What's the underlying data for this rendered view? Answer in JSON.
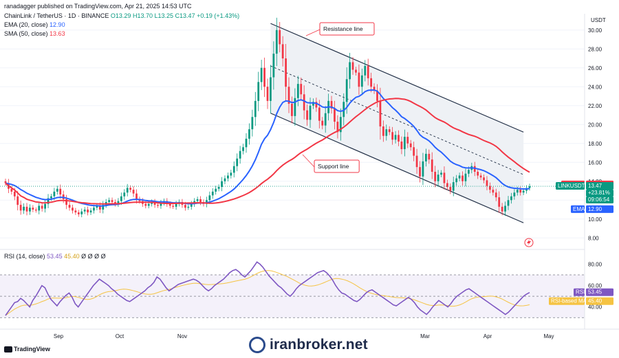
{
  "header": {
    "published": "ranadagger published on TradingView.com, Apr 21, 2025 14:53 UTC",
    "symbol": "ChainLink / TetherUS · 1D · BINANCE",
    "ohlc": {
      "o": "O13.29",
      "h": "H13.70",
      "l": "L13.25",
      "c": "C13.47",
      "chg": "+0.19 (+1.43%)"
    },
    "ema_label": "EMA (20, close)",
    "ema_value": "12.90",
    "sma_label": "SMA (50, close)",
    "sma_value": "13.63",
    "rsi_label": "RSI (14, close)",
    "rsi_value": "53.45",
    "rsi_ma_value": "45.40",
    "rsi_extra": "Ø Ø Ø Ø",
    "currency": "USDT"
  },
  "annotations": {
    "resistance": "Resistance line",
    "support": "Support line"
  },
  "price_axis": {
    "ticks": [
      "30.00",
      "28.00",
      "26.00",
      "24.00",
      "22.00",
      "20.00",
      "18.00",
      "16.00",
      "14.00",
      "12.00",
      "10.00",
      "8.00"
    ]
  },
  "rsi_axis": {
    "ticks": [
      "80.00",
      "60.00",
      "40.00"
    ]
  },
  "x_axis": {
    "ticks": [
      "Sep",
      "Oct",
      "Nov",
      "Mar",
      "Apr",
      "May"
    ]
  },
  "price_tags": {
    "sma_label": "SMA^MA",
    "sma_value": "13.63",
    "symbol": "LINKUSDT",
    "last": "13.47",
    "change": "+23.81%",
    "countdown": "09:06:54",
    "ema_label": "EMA",
    "ema_value": "12.90",
    "rsi_label": "RSI",
    "rsi_value": "53.45",
    "rsima_label": "RSI-based MA",
    "rsima_value": "45.40"
  },
  "colors": {
    "up": "#089981",
    "down": "#f23645",
    "ema": "#2962ff",
    "sma": "#f23645",
    "rsi": "#7e57c2",
    "rsi_ma": "#f5c342",
    "channel_fill": "#eef1f5",
    "channel_line": "#1f2d44"
  },
  "branding": {
    "tradingview": "TradingView",
    "watermark": "iranbroker.net"
  },
  "chart_data": {
    "type": "candlestick",
    "symbol": "LINKUSDT",
    "timeframe": "1D",
    "y_axis": {
      "min": 7.0,
      "max": 31.0,
      "scale": "linear"
    },
    "x_axis_labels": [
      "Sep",
      "Oct",
      "Nov",
      "Mar",
      "Apr",
      "May"
    ],
    "price_series": {
      "name": "LINKUSDT",
      "close": [
        13.8,
        13.2,
        12.9,
        12.4,
        11.5,
        10.9,
        11.3,
        10.8,
        11.2,
        11.0,
        10.9,
        11.4,
        11.1,
        11.6,
        12.2,
        12.4,
        12.9,
        13.2,
        12.6,
        12.1,
        11.5,
        11.2,
        10.9,
        10.7,
        10.5,
        10.8,
        11.0,
        10.7,
        10.9,
        11.2,
        11.4,
        11.0,
        11.5,
        11.8,
        12.0,
        11.8,
        11.6,
        11.9,
        12.4,
        12.8,
        13.3,
        13.1,
        12.7,
        12.1,
        11.9,
        11.6,
        11.4,
        11.6,
        11.8,
        11.5,
        11.4,
        11.7,
        11.9,
        11.6,
        11.4,
        11.3,
        11.6,
        11.8,
        11.5,
        11.2,
        11.3,
        11.6,
        11.9,
        12.1,
        11.8,
        11.6,
        12.0,
        12.5,
        12.9,
        13.2,
        13.4,
        14.0,
        14.3,
        14.6,
        14.9,
        15.6,
        16.4,
        17.2,
        17.6,
        18.5,
        19.5,
        20.8,
        22.5,
        24.5,
        26.0,
        24.0,
        22.5,
        25.0,
        27.5,
        30.0,
        28.5,
        27.0,
        24.0,
        22.2,
        20.9,
        22.8,
        24.3,
        23.2,
        21.5,
        20.5,
        22.0,
        22.4,
        21.8,
        20.4,
        19.9,
        21.2,
        22.5,
        21.7,
        20.3,
        19.2,
        20.8,
        22.4,
        24.8,
        26.6,
        25.8,
        25.5,
        24.0,
        25.2,
        26.2,
        24.9,
        24.0,
        23.6,
        22.5,
        19.8,
        18.8,
        19.5,
        19.2,
        18.4,
        18.9,
        18.2,
        17.4,
        18.7,
        18.0,
        17.6,
        16.7,
        15.5,
        14.5,
        16.1,
        16.9,
        16.3,
        15.0,
        14.0,
        14.7,
        14.9,
        13.8,
        13.4,
        13.0,
        13.9,
        14.3,
        14.6,
        14.0,
        14.8,
        15.2,
        15.6,
        15.0,
        14.6,
        14.4,
        14.1,
        13.5,
        13.1,
        12.8,
        12.3,
        11.3,
        10.8,
        11.4,
        12.0,
        12.4,
        12.8,
        13.1,
        12.8,
        13.0,
        13.28,
        13.47
      ],
      "last": 13.47
    },
    "ema20_series": {
      "name": "EMA (20, close)",
      "last": 12.9
    },
    "sma50_series": {
      "name": "SMA (50, close)",
      "last": 13.63
    },
    "channel": {
      "resistance": {
        "from": {
          "i": 87,
          "price": 30.7
        },
        "to": {
          "i": 170,
          "price": 19.2
        }
      },
      "support": {
        "from": {
          "i": 87,
          "price": 21.2
        },
        "to": {
          "i": 170,
          "price": 9.6
        }
      },
      "midline": {
        "from": {
          "i": 87,
          "price": 26.2
        },
        "to": {
          "i": 170,
          "price": 14.7
        }
      }
    },
    "rsi": {
      "name": "RSI (14, close)",
      "y_axis": {
        "min": 25,
        "max": 88
      },
      "bands": [
        70,
        50,
        30
      ],
      "values": [
        32,
        36,
        40,
        44,
        45,
        48,
        46,
        43,
        40,
        46,
        50,
        55,
        60,
        58,
        52,
        47,
        44,
        41,
        45,
        48,
        51,
        53,
        49,
        43,
        40,
        44,
        48,
        52,
        56,
        60,
        63,
        66,
        64,
        62,
        60,
        57,
        55,
        52,
        50,
        48,
        46,
        45,
        47,
        49,
        51,
        53,
        55,
        58,
        60,
        63,
        68,
        66,
        62,
        58,
        55,
        57,
        59,
        61,
        62,
        63,
        64,
        65,
        66,
        65,
        63,
        60,
        57,
        55,
        57,
        60,
        62,
        64,
        66,
        69,
        72,
        74,
        75,
        73,
        70,
        68,
        71,
        74,
        78,
        82,
        80,
        77,
        73,
        69,
        66,
        63,
        60,
        58,
        55,
        52,
        50,
        53,
        57,
        60,
        62,
        64,
        66,
        68,
        70,
        72,
        73,
        74,
        72,
        69,
        65,
        60,
        56,
        53,
        52,
        50,
        48,
        46,
        45,
        47,
        50,
        53,
        55,
        56,
        54,
        52,
        50,
        48,
        46,
        44,
        42,
        41,
        43,
        45,
        47,
        49,
        47,
        44,
        40,
        37,
        35,
        33,
        36,
        40,
        43,
        46,
        44,
        42,
        40,
        43,
        47,
        50,
        52,
        54,
        56,
        57,
        55,
        53,
        51,
        49,
        47,
        45,
        43,
        41,
        39,
        37,
        35,
        33,
        35,
        38,
        41,
        44,
        47,
        50,
        52,
        53.45
      ],
      "ma_values_last": 45.4
    }
  }
}
